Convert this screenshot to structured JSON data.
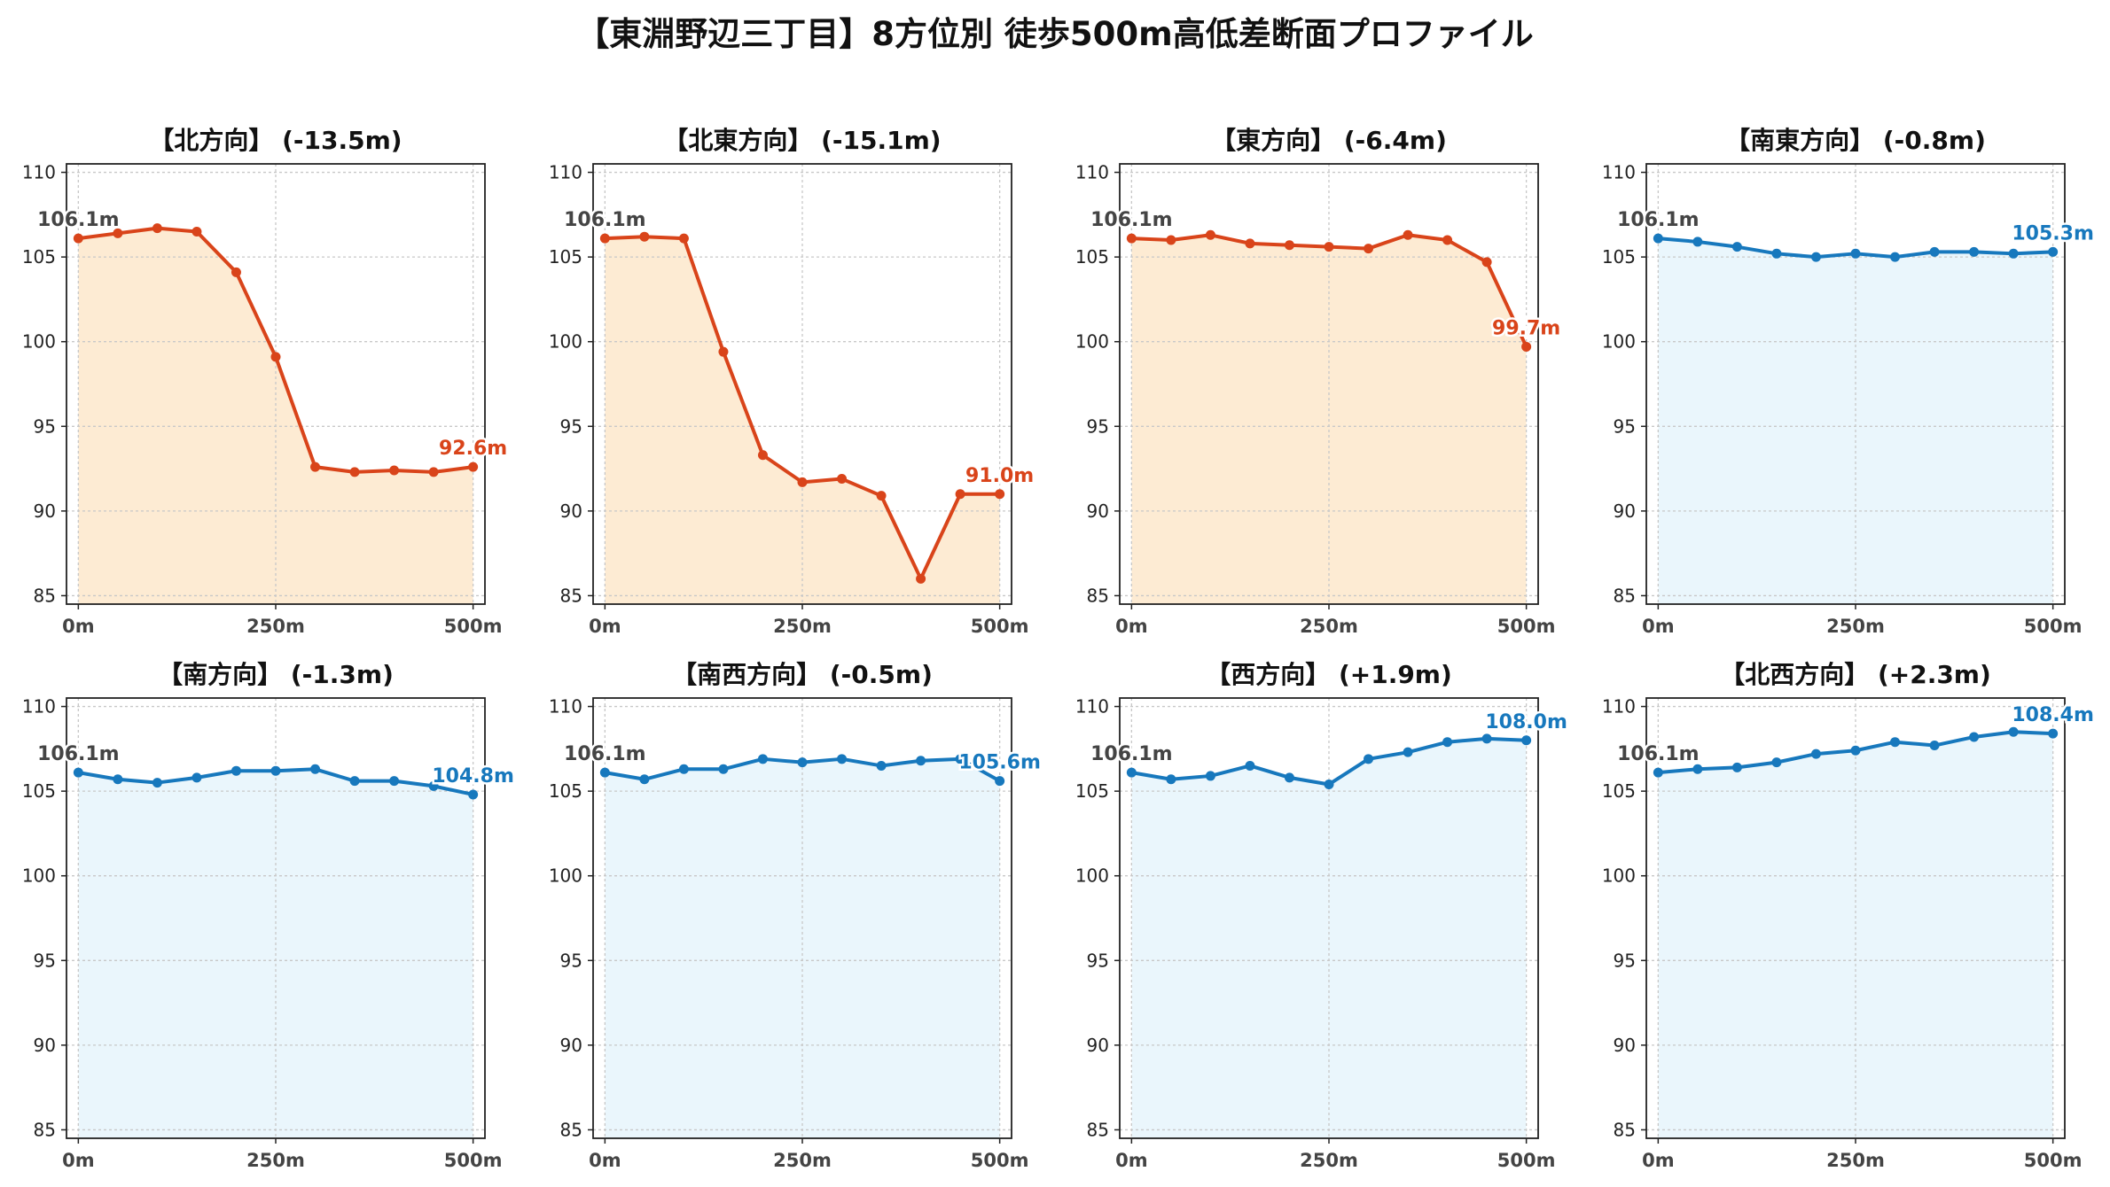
{
  "title": "【東淵野辺三丁目】8方位別 徒歩500m高低差断面プロファイル",
  "colors": {
    "down": "#d9441a",
    "down_fill": "#fdebd3",
    "up": "#1778bd",
    "up_fill": "#eaf6fc",
    "start_label": "#444444"
  },
  "chart_data": [
    {
      "type": "area",
      "title": "【北方向】 (-13.5m)",
      "x_tick_labels": [
        "0m",
        "250m",
        "500m"
      ],
      "x_ticks": [
        0,
        250,
        500
      ],
      "y_ticks": [
        85,
        90,
        95,
        100,
        105,
        110
      ],
      "xlim": [
        -15,
        515
      ],
      "ylim": [
        84.5,
        110.5
      ],
      "grid": true,
      "trend": "down",
      "x": [
        0,
        50,
        100,
        150,
        200,
        250,
        300,
        350,
        400,
        450,
        500
      ],
      "y": [
        106.1,
        106.4,
        106.7,
        106.5,
        104.1,
        99.1,
        92.6,
        92.3,
        92.4,
        92.3,
        92.6
      ],
      "start_label": "106.1m",
      "end_label": "92.6m"
    },
    {
      "type": "area",
      "title": "【北東方向】 (-15.1m)",
      "x_tick_labels": [
        "0m",
        "250m",
        "500m"
      ],
      "x_ticks": [
        0,
        250,
        500
      ],
      "y_ticks": [
        85,
        90,
        95,
        100,
        105,
        110
      ],
      "xlim": [
        -15,
        515
      ],
      "ylim": [
        84.5,
        110.5
      ],
      "grid": true,
      "trend": "down",
      "x": [
        0,
        50,
        100,
        150,
        200,
        250,
        300,
        350,
        400,
        450,
        500
      ],
      "y": [
        106.1,
        106.2,
        106.1,
        99.4,
        93.3,
        91.7,
        91.9,
        90.9,
        86.0,
        91.0,
        91.0
      ],
      "start_label": "106.1m",
      "end_label": "91.0m"
    },
    {
      "type": "area",
      "title": "【東方向】 (-6.4m)",
      "x_tick_labels": [
        "0m",
        "250m",
        "500m"
      ],
      "x_ticks": [
        0,
        250,
        500
      ],
      "y_ticks": [
        85,
        90,
        95,
        100,
        105,
        110
      ],
      "xlim": [
        -15,
        515
      ],
      "ylim": [
        84.5,
        110.5
      ],
      "grid": true,
      "trend": "down",
      "x": [
        0,
        50,
        100,
        150,
        200,
        250,
        300,
        350,
        400,
        450,
        500
      ],
      "y": [
        106.1,
        106.0,
        106.3,
        105.8,
        105.7,
        105.6,
        105.5,
        106.3,
        106.0,
        104.7,
        99.7
      ],
      "start_label": "106.1m",
      "end_label": "99.7m"
    },
    {
      "type": "area",
      "title": "【南東方向】 (-0.8m)",
      "x_tick_labels": [
        "0m",
        "250m",
        "500m"
      ],
      "x_ticks": [
        0,
        250,
        500
      ],
      "y_ticks": [
        85,
        90,
        95,
        100,
        105,
        110
      ],
      "xlim": [
        -15,
        515
      ],
      "ylim": [
        84.5,
        110.5
      ],
      "grid": true,
      "trend": "up",
      "x": [
        0,
        50,
        100,
        150,
        200,
        250,
        300,
        350,
        400,
        450,
        500
      ],
      "y": [
        106.1,
        105.9,
        105.6,
        105.2,
        105.0,
        105.2,
        105.0,
        105.3,
        105.3,
        105.2,
        105.3
      ],
      "start_label": "106.1m",
      "end_label": "105.3m"
    },
    {
      "type": "area",
      "title": "【南方向】 (-1.3m)",
      "x_tick_labels": [
        "0m",
        "250m",
        "500m"
      ],
      "x_ticks": [
        0,
        250,
        500
      ],
      "y_ticks": [
        85,
        90,
        95,
        100,
        105,
        110
      ],
      "xlim": [
        -15,
        515
      ],
      "ylim": [
        84.5,
        110.5
      ],
      "grid": true,
      "trend": "up",
      "x": [
        0,
        50,
        100,
        150,
        200,
        250,
        300,
        350,
        400,
        450,
        500
      ],
      "y": [
        106.1,
        105.7,
        105.5,
        105.8,
        106.2,
        106.2,
        106.3,
        105.6,
        105.6,
        105.3,
        104.8
      ],
      "start_label": "106.1m",
      "end_label": "104.8m"
    },
    {
      "type": "area",
      "title": "【南西方向】 (-0.5m)",
      "x_tick_labels": [
        "0m",
        "250m",
        "500m"
      ],
      "x_ticks": [
        0,
        250,
        500
      ],
      "y_ticks": [
        85,
        90,
        95,
        100,
        105,
        110
      ],
      "xlim": [
        -15,
        515
      ],
      "ylim": [
        84.5,
        110.5
      ],
      "grid": true,
      "trend": "up",
      "x": [
        0,
        50,
        100,
        150,
        200,
        250,
        300,
        350,
        400,
        450,
        500
      ],
      "y": [
        106.1,
        105.7,
        106.3,
        106.3,
        106.9,
        106.7,
        106.9,
        106.5,
        106.8,
        106.9,
        105.6
      ],
      "start_label": "106.1m",
      "end_label": "105.6m"
    },
    {
      "type": "area",
      "title": "【西方向】 (+1.9m)",
      "x_tick_labels": [
        "0m",
        "250m",
        "500m"
      ],
      "x_ticks": [
        0,
        250,
        500
      ],
      "y_ticks": [
        85,
        90,
        95,
        100,
        105,
        110
      ],
      "xlim": [
        -15,
        515
      ],
      "ylim": [
        84.5,
        110.5
      ],
      "grid": true,
      "trend": "up",
      "x": [
        0,
        50,
        100,
        150,
        200,
        250,
        300,
        350,
        400,
        450,
        500
      ],
      "y": [
        106.1,
        105.7,
        105.9,
        106.5,
        105.8,
        105.4,
        106.9,
        107.3,
        107.9,
        108.1,
        108.0
      ],
      "start_label": "106.1m",
      "end_label": "108.0m"
    },
    {
      "type": "area",
      "title": "【北西方向】 (+2.3m)",
      "x_tick_labels": [
        "0m",
        "250m",
        "500m"
      ],
      "x_ticks": [
        0,
        250,
        500
      ],
      "y_ticks": [
        85,
        90,
        95,
        100,
        105,
        110
      ],
      "xlim": [
        -15,
        515
      ],
      "ylim": [
        84.5,
        110.5
      ],
      "grid": true,
      "trend": "up",
      "x": [
        0,
        50,
        100,
        150,
        200,
        250,
        300,
        350,
        400,
        450,
        500
      ],
      "y": [
        106.1,
        106.3,
        106.4,
        106.7,
        107.2,
        107.4,
        107.9,
        107.7,
        108.2,
        108.5,
        108.4
      ],
      "start_label": "106.1m",
      "end_label": "108.4m"
    }
  ]
}
